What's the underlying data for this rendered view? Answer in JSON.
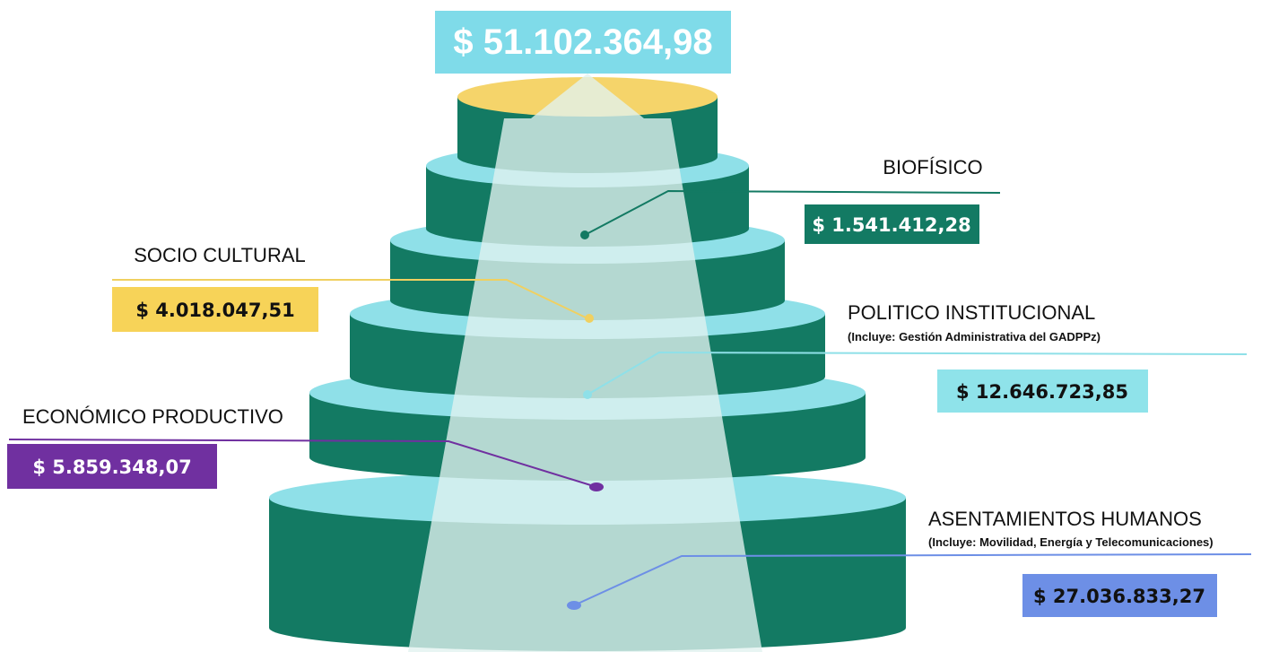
{
  "total": "$ 51.102.364,98",
  "items": [
    {
      "title": "BIOFÍSICO",
      "value": "$ 1.541.412,28"
    },
    {
      "title": "SOCIO CULTURAL",
      "value": "$ 4.018.047,51"
    },
    {
      "title": "POLITICO INSTITUCIONAL",
      "subtitle": "(Incluye: Gestión Administrativa del GADPPz)",
      "value": "$ 12.646.723,85"
    },
    {
      "title": "ECONÓMICO PRODUCTIVO",
      "value": "$ 5.859.348,07"
    },
    {
      "title": "ASENTAMIENTOS HUMANOS",
      "subtitle": "(Incluye: Movilidad, Energía y Telecomunicaciones)",
      "value": "$ 27.036.833,27"
    }
  ]
}
